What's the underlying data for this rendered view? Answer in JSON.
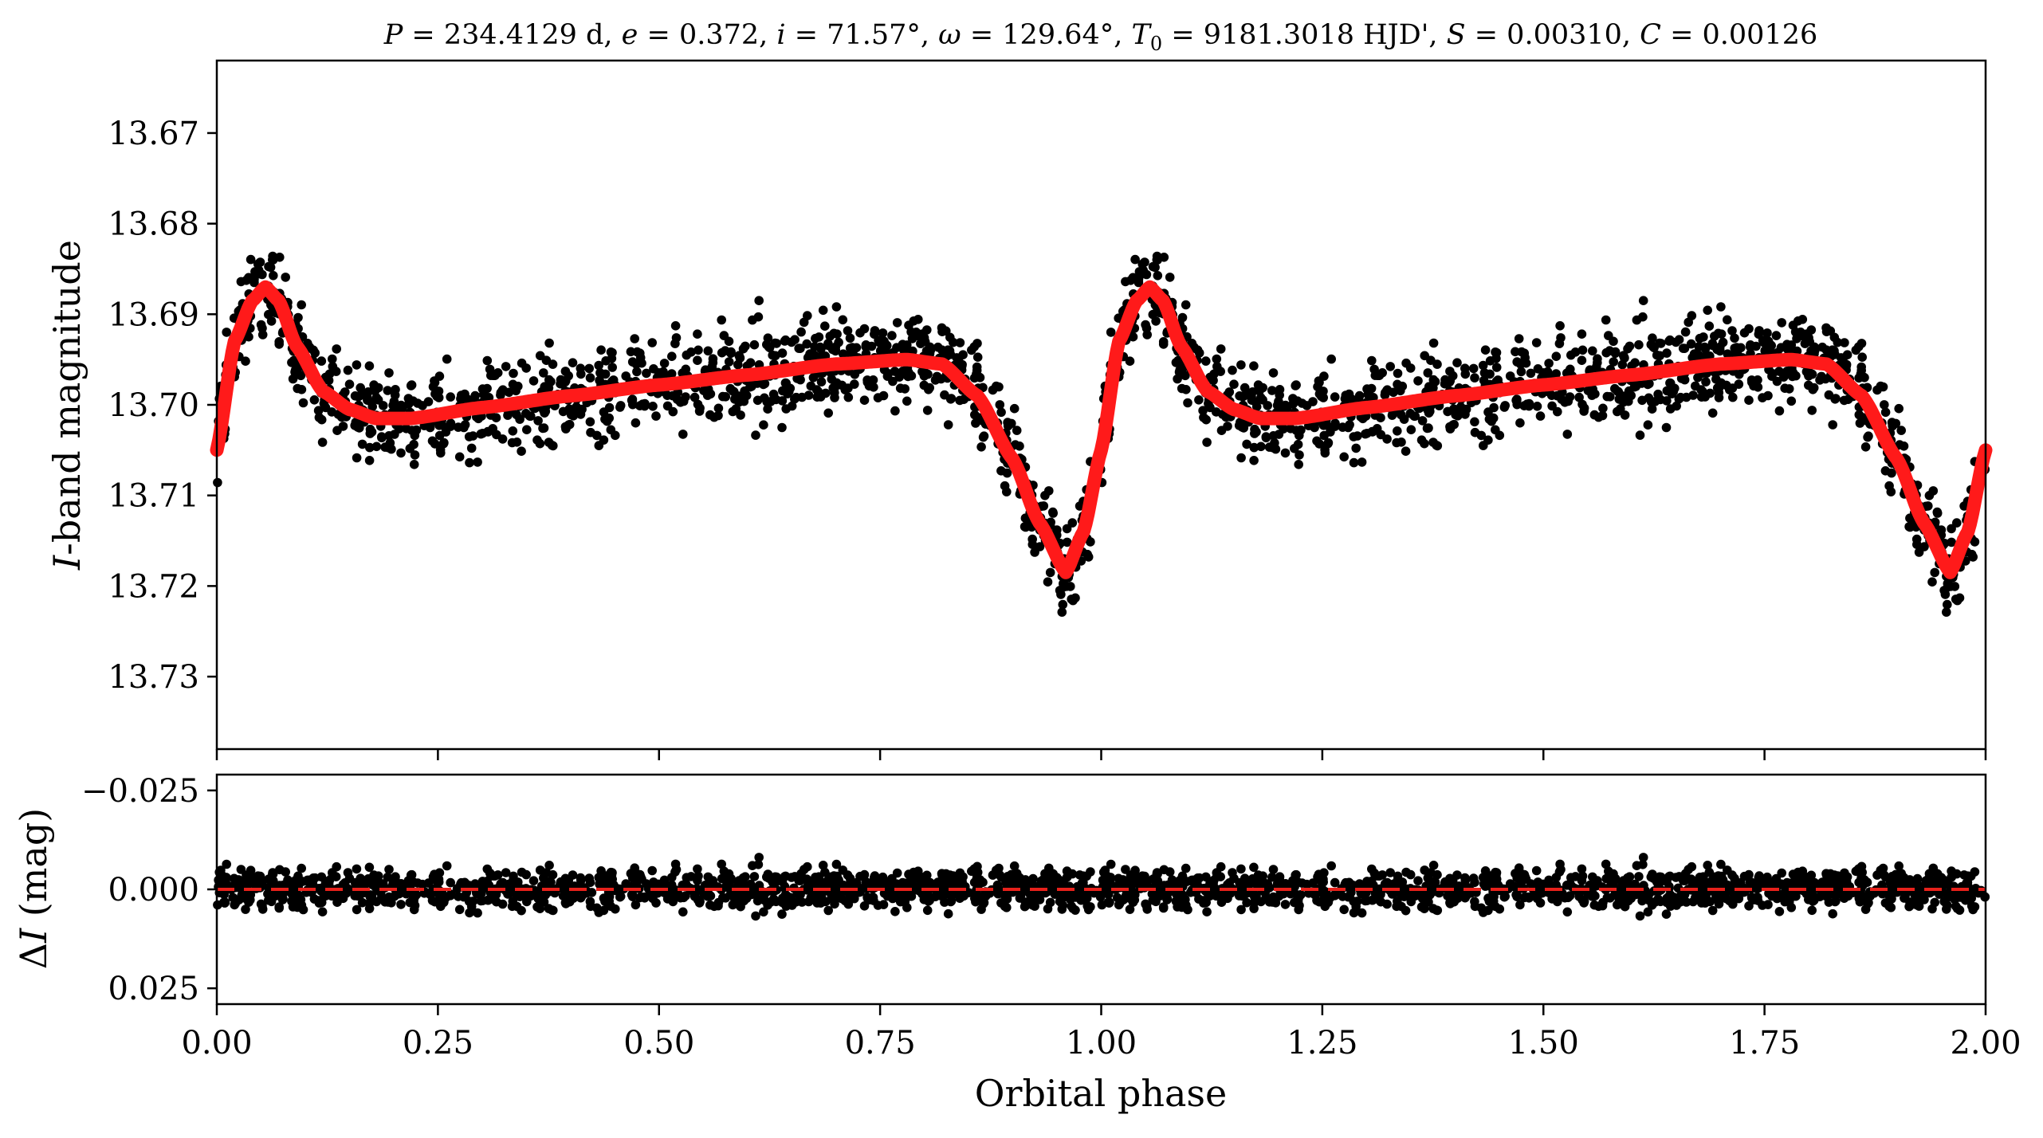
{
  "chart_data": [
    {
      "type": "scatter",
      "panel": "light-curve",
      "title": "P = 234.4129 d, e = 0.372, i = 71.57°, ω = 129.64°, T0 = 9181.3018 HJD', S = 0.00310, C = 0.00126",
      "title_parts": {
        "P": "P",
        "P_val": " = 234.4129 d, ",
        "e": "e",
        "e_val": " = 0.372, ",
        "i": "i",
        "i_val": " = 71.57°, ",
        "w": "ω",
        "w_val": " = 129.64°, ",
        "T": "T",
        "T_sub": "0",
        "T_val": " = 9181.3018 HJD', ",
        "S": "S",
        "S_val": " = 0.00310, ",
        "C": "C",
        "C_val": " = 0.00126"
      },
      "ylabel_italic": "I",
      "ylabel_rest": "-band magnitude",
      "xlim": [
        0.0,
        2.0
      ],
      "ylim": [
        13.738,
        13.662
      ],
      "y_inverted": true,
      "yticks": [
        "13.67",
        "13.68",
        "13.69",
        "13.70",
        "13.71",
        "13.72",
        "13.73"
      ],
      "ytick_values": [
        13.67,
        13.68,
        13.69,
        13.7,
        13.71,
        13.72,
        13.73
      ],
      "series": [
        {
          "kind": "points",
          "color": "#000000",
          "note": "dense photometric points, phase-folded and repeated over two cycles",
          "approx_envelope": "about ±0.006 mag around the model curve"
        },
        {
          "kind": "model-curve",
          "color": "#ff1a1a",
          "x": [
            0.0,
            0.02,
            0.04,
            0.055,
            0.07,
            0.09,
            0.12,
            0.15,
            0.18,
            0.22,
            0.3,
            0.4,
            0.5,
            0.6,
            0.7,
            0.78,
            0.82,
            0.86,
            0.9,
            0.93,
            0.96,
            0.98,
            1.0
          ],
          "y": [
            13.705,
            13.693,
            13.6885,
            13.687,
            13.6885,
            13.6935,
            13.6985,
            13.7005,
            13.7015,
            13.7015,
            13.7003,
            13.699,
            13.6978,
            13.6967,
            13.6955,
            13.695,
            13.6955,
            13.699,
            13.706,
            13.713,
            13.7185,
            13.714,
            13.705
          ]
        }
      ]
    },
    {
      "type": "scatter",
      "panel": "residuals",
      "xlabel": "Orbital phase",
      "ylabel_prefix": "Δ",
      "ylabel_italic": "I",
      "ylabel_rest": " (mag)",
      "xlim": [
        0.0,
        2.0
      ],
      "ylim": [
        0.029,
        -0.029
      ],
      "y_inverted": true,
      "xticks": [
        "0.00",
        "0.25",
        "0.50",
        "0.75",
        "1.00",
        "1.25",
        "1.50",
        "1.75",
        "2.00"
      ],
      "xtick_values": [
        0.0,
        0.25,
        0.5,
        0.75,
        1.0,
        1.25,
        1.5,
        1.75,
        2.0
      ],
      "yticks": [
        "−0.025",
        "0.000",
        "0.025"
      ],
      "ytick_values": [
        -0.025,
        0.0,
        0.025
      ],
      "series": [
        {
          "kind": "points",
          "color": "#000000",
          "note": "residuals scattered roughly within ±0.02 mag"
        },
        {
          "kind": "zero-line",
          "color": "#e8211b",
          "dashed": true,
          "y": 0.0
        }
      ]
    }
  ]
}
